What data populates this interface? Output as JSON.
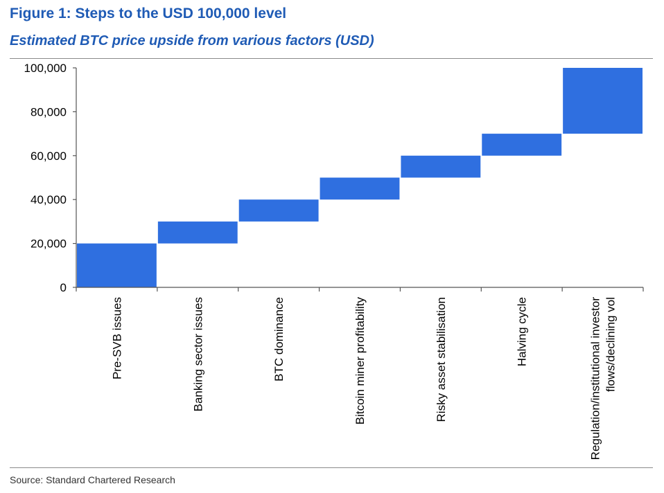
{
  "header": {
    "title": "Figure 1: Steps to the USD 100,000 level",
    "subtitle": "Estimated BTC price upside from various factors (USD)"
  },
  "footer": {
    "source": "Source: Standard Chartered Research"
  },
  "colors": {
    "accent": "#1f5bb5",
    "bar": "#2f6fe0",
    "axis": "#555555",
    "rule": "#8a8a8a"
  },
  "chart_data": {
    "type": "bar",
    "style": "waterfall",
    "categories": [
      "Pre-SVB issues",
      "Banking sector issues",
      "BTC dominance",
      "Bitcoin miner profitability",
      "Risky asset stabilisation",
      "Halving cycle",
      "Regulation/institutional investor flows/declining vol"
    ],
    "category_labels": [
      [
        "Pre-SVB issues"
      ],
      [
        "Banking sector issues"
      ],
      [
        "BTC dominance"
      ],
      [
        "Bitcoin miner profitability"
      ],
      [
        "Risky asset stabilisation"
      ],
      [
        "Halving cycle"
      ],
      [
        "Regulation/institutional investor",
        "flows/declining vol"
      ]
    ],
    "bars": [
      {
        "start": 0,
        "end": 20000
      },
      {
        "start": 20000,
        "end": 30000
      },
      {
        "start": 30000,
        "end": 40000
      },
      {
        "start": 40000,
        "end": 50000
      },
      {
        "start": 50000,
        "end": 60000
      },
      {
        "start": 60000,
        "end": 70000
      },
      {
        "start": 70000,
        "end": 100000
      }
    ],
    "ylim": [
      0,
      100000
    ],
    "yticks": [
      0,
      20000,
      40000,
      60000,
      80000,
      100000
    ],
    "ytick_labels": [
      "0",
      "20,000",
      "40,000",
      "60,000",
      "80,000",
      "100,000"
    ],
    "grid": false,
    "legend": "none"
  }
}
